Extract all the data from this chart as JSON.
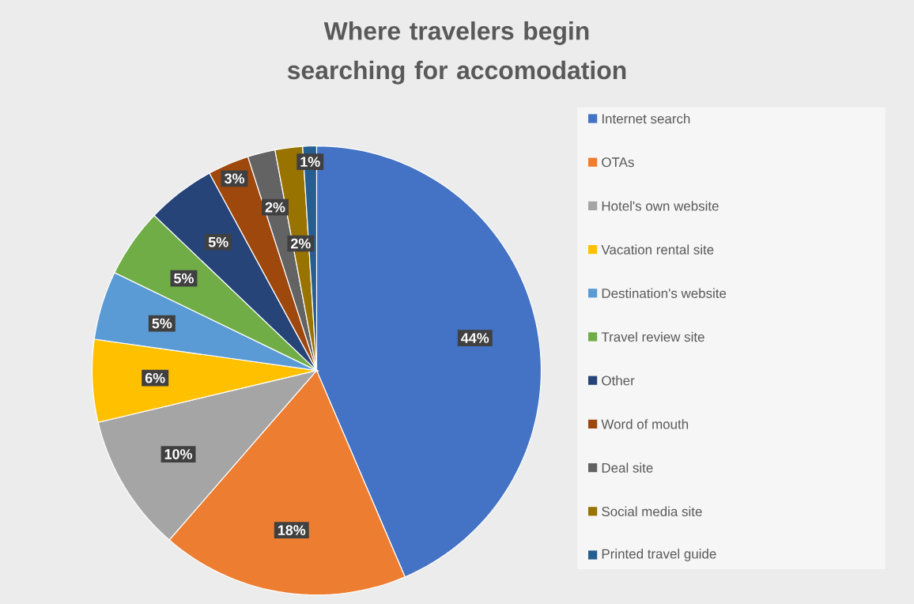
{
  "chart_data": {
    "type": "pie",
    "title": "Where travelers begin searching for accomodation",
    "categories": [
      "Internet search",
      "OTAs",
      "Hotel's own website",
      "Vacation rental site",
      "Destination's website",
      "Travel review site",
      "Other",
      "Word of mouth",
      "Deal site",
      "Social media site",
      "Printed travel guide"
    ],
    "values": [
      44,
      18,
      10,
      6,
      5,
      5,
      5,
      3,
      2,
      2,
      1
    ],
    "value_labels": [
      "44%",
      "18%",
      "10%",
      "6%",
      "5%",
      "5%",
      "5%",
      "3%",
      "2%",
      "2%",
      "1%"
    ],
    "colors": [
      "#4472c4",
      "#ed7d31",
      "#a5a5a5",
      "#ffc000",
      "#5b9bd5",
      "#70ad47",
      "#264478",
      "#9e480e",
      "#636363",
      "#997300",
      "#255e91"
    ],
    "legend": "right"
  }
}
